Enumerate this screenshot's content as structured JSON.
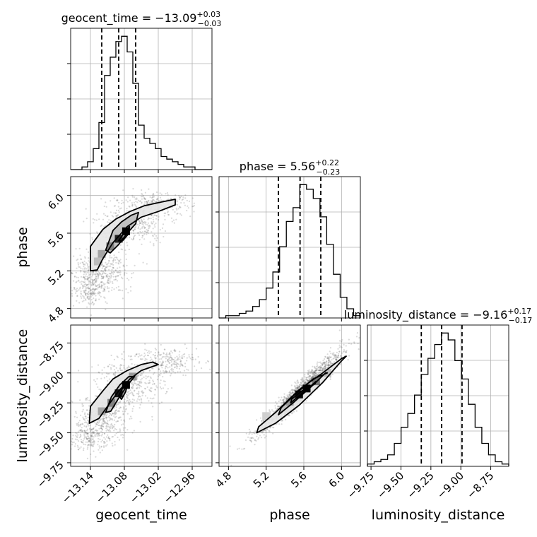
{
  "chart_data": {
    "type": "corner",
    "style": {
      "color": "#000000",
      "grid": true,
      "gridColor": "#b0b0b0",
      "scatterColor": "#555555",
      "quantileLine": "dashed"
    },
    "parameters": [
      {
        "name": "geocent_time",
        "axis_label": "geocent_time",
        "range": [
          -13.175,
          -12.925
        ],
        "ticks": [
          -13.14,
          -13.08,
          -13.02,
          -12.96
        ],
        "tick_labels": [
          "−13.14",
          "−13.08",
          "−13.02",
          "−12.96"
        ],
        "title": {
          "main": "geocent_time = −13.09",
          "plus": "+0.03",
          "minus": "−0.03"
        },
        "median": -13.09,
        "quantiles": [
          -13.12,
          -13.09,
          -13.06
        ],
        "hist_edges_range": [
          -13.175,
          -12.925
        ],
        "hist": [
          0,
          0,
          1,
          3,
          8,
          18,
          36,
          43,
          49,
          51,
          45,
          33,
          17,
          12,
          10,
          8,
          5,
          4,
          3,
          2,
          1,
          1,
          0,
          0,
          0
        ]
      },
      {
        "name": "phase",
        "axis_label": "phase",
        "range": [
          4.7,
          6.2
        ],
        "ticks": [
          4.8,
          5.2,
          5.6,
          6.0
        ],
        "tick_labels": [
          "4.8",
          "5.2",
          "5.6",
          "6.0"
        ],
        "title": {
          "main": "phase = 5.56",
          "plus": "+0.22",
          "minus": "−0.23"
        },
        "median": 5.56,
        "quantiles": [
          5.33,
          5.56,
          5.78
        ],
        "hist_edges_range": [
          4.7,
          6.2
        ],
        "hist": [
          0,
          1,
          1,
          2,
          3,
          5,
          8,
          13,
          20,
          31,
          42,
          48,
          58,
          56,
          52,
          44,
          32,
          19,
          9,
          4,
          1
        ]
      },
      {
        "name": "luminosity_distance",
        "axis_label": "luminosity_distance",
        "range": [
          -9.78,
          -8.6
        ],
        "ticks": [
          -9.75,
          -9.5,
          -9.25,
          -9.0,
          -8.75
        ],
        "tick_labels": [
          "−9.75",
          "−9.50",
          "−9.25",
          "−9.00",
          "−8.75"
        ],
        "title": {
          "main": "luminosity_distance = −9.16",
          "plus": "+0.17",
          "minus": "−0.17"
        },
        "median": -9.16,
        "quantiles": [
          -9.33,
          -9.16,
          -8.99
        ],
        "hist_edges_range": [
          -9.78,
          -8.6
        ],
        "hist": [
          1,
          2,
          3,
          5,
          10,
          17,
          23,
          31,
          40,
          47,
          53,
          58,
          55,
          46,
          38,
          27,
          17,
          10,
          5,
          2,
          1
        ]
      }
    ],
    "pairs": [
      {
        "x": "geocent_time",
        "y": "phase",
        "center": [
          -13.085,
          5.5
        ],
        "cloud": [
          {
            "x": -13.12,
            "y": 5.2,
            "sx": 0.025,
            "sy": 0.12,
            "n": 420
          },
          {
            "x": -13.07,
            "y": 5.7,
            "sx": 0.03,
            "sy": 0.12,
            "n": 380
          },
          {
            "x": -13.02,
            "y": 5.9,
            "sx": 0.03,
            "sy": 0.06,
            "n": 250
          },
          {
            "x": -13.14,
            "y": 5.0,
            "sx": 0.015,
            "sy": 0.08,
            "n": 160
          }
        ],
        "contours": [
          [
            [
              -13.14,
              5.2
            ],
            [
              -13.14,
              5.46
            ],
            [
              -13.118,
              5.64
            ],
            [
              -13.095,
              5.75
            ],
            [
              -13.07,
              5.83
            ],
            [
              -13.045,
              5.89
            ],
            [
              -13.015,
              5.93
            ],
            [
              -12.99,
              5.96
            ],
            [
              -12.99,
              5.9
            ],
            [
              -13.02,
              5.83
            ],
            [
              -13.05,
              5.77
            ],
            [
              -13.075,
              5.67
            ],
            [
              -13.1,
              5.5
            ],
            [
              -13.118,
              5.33
            ],
            [
              -13.128,
              5.21
            ]
          ],
          [
            [
              -13.113,
              5.42
            ],
            [
              -13.1,
              5.63
            ],
            [
              -13.085,
              5.72
            ],
            [
              -13.068,
              5.79
            ],
            [
              -13.055,
              5.82
            ],
            [
              -13.06,
              5.7
            ],
            [
              -13.075,
              5.6
            ],
            [
              -13.09,
              5.48
            ],
            [
              -13.105,
              5.39
            ]
          ],
          [
            [
              -13.09,
              5.52
            ],
            [
              -13.08,
              5.61
            ],
            [
              -13.071,
              5.67
            ],
            [
              -13.073,
              5.59
            ],
            [
              -13.083,
              5.52
            ]
          ]
        ],
        "density_cells": [
          {
            "x": -13.077,
            "y": 5.62,
            "v": 1.0
          },
          {
            "x": -13.09,
            "y": 5.54,
            "v": 0.85
          },
          {
            "x": -13.105,
            "y": 5.46,
            "v": 0.45
          },
          {
            "x": -13.12,
            "y": 5.38,
            "v": 0.3
          },
          {
            "x": -13.127,
            "y": 5.3,
            "v": 0.2
          }
        ]
      },
      {
        "x": "geocent_time",
        "y": "luminosity_distance",
        "center": [
          -13.085,
          -9.17
        ],
        "cloud": [
          {
            "x": -13.12,
            "y": -9.4,
            "sx": 0.025,
            "sy": 0.1,
            "n": 400
          },
          {
            "x": -13.07,
            "y": -9.1,
            "sx": 0.03,
            "sy": 0.1,
            "n": 380
          },
          {
            "x": -13.01,
            "y": -8.9,
            "sx": 0.03,
            "sy": 0.06,
            "n": 260
          },
          {
            "x": -13.14,
            "y": -9.55,
            "sx": 0.015,
            "sy": 0.06,
            "n": 150
          }
        ],
        "contours": [
          [
            [
              -13.142,
              -9.42
            ],
            [
              -13.14,
              -9.28
            ],
            [
              -13.118,
              -9.15
            ],
            [
              -13.1,
              -9.05
            ],
            [
              -13.075,
              -8.98
            ],
            [
              -13.05,
              -8.93
            ],
            [
              -13.03,
              -8.91
            ],
            [
              -13.02,
              -8.93
            ],
            [
              -13.05,
              -8.98
            ],
            [
              -13.07,
              -9.05
            ],
            [
              -13.09,
              -9.15
            ],
            [
              -13.11,
              -9.28
            ],
            [
              -13.125,
              -9.38
            ]
          ],
          [
            [
              -13.113,
              -9.33
            ],
            [
              -13.103,
              -9.2
            ],
            [
              -13.088,
              -9.1
            ],
            [
              -13.072,
              -9.03
            ],
            [
              -13.062,
              -9.03
            ],
            [
              -13.074,
              -9.1
            ],
            [
              -13.09,
              -9.21
            ],
            [
              -13.104,
              -9.32
            ]
          ],
          [
            [
              -13.09,
              -9.19
            ],
            [
              -13.08,
              -9.1
            ],
            [
              -13.073,
              -9.08
            ],
            [
              -13.078,
              -9.16
            ],
            [
              -13.085,
              -9.22
            ]
          ]
        ],
        "density_cells": [
          {
            "x": -13.077,
            "y": -9.1,
            "v": 1.0
          },
          {
            "x": -13.09,
            "y": -9.17,
            "v": 0.9
          },
          {
            "x": -13.103,
            "y": -9.25,
            "v": 0.45
          },
          {
            "x": -13.12,
            "y": -9.32,
            "v": 0.3
          },
          {
            "x": -13.065,
            "y": -9.03,
            "v": 0.35
          }
        ]
      },
      {
        "x": "phase",
        "y": "luminosity_distance",
        "center": [
          5.56,
          -9.16
        ],
        "cloud": [
          {
            "x": 5.56,
            "y": -9.16,
            "sx": 0.22,
            "sy": 0.17,
            "n": 1400,
            "rho": 0.96
          }
        ],
        "contours": [
          [
            [
              5.1,
              -9.5
            ],
            [
              5.3,
              -9.42
            ],
            [
              5.55,
              -9.27
            ],
            [
              5.8,
              -9.08
            ],
            [
              6.0,
              -8.9
            ],
            [
              6.05,
              -8.86
            ],
            [
              6.0,
              -8.88
            ],
            [
              5.8,
              -9.0
            ],
            [
              5.55,
              -9.14
            ],
            [
              5.3,
              -9.33
            ],
            [
              5.12,
              -9.45
            ]
          ],
          [
            [
              5.33,
              -9.35
            ],
            [
              5.5,
              -9.24
            ],
            [
              5.7,
              -9.1
            ],
            [
              5.83,
              -9.0
            ],
            [
              5.85,
              -9.0
            ],
            [
              5.7,
              -9.05
            ],
            [
              5.52,
              -9.17
            ],
            [
              5.36,
              -9.29
            ]
          ],
          [
            [
              5.46,
              -9.25
            ],
            [
              5.6,
              -9.16
            ],
            [
              5.73,
              -9.07
            ],
            [
              5.72,
              -9.09
            ],
            [
              5.58,
              -9.15
            ],
            [
              5.47,
              -9.22
            ]
          ]
        ],
        "density_cells": [
          {
            "x": 5.63,
            "y": -9.13,
            "v": 1.0
          },
          {
            "x": 5.55,
            "y": -9.18,
            "v": 0.95
          },
          {
            "x": 5.73,
            "y": -9.07,
            "v": 0.5
          },
          {
            "x": 5.45,
            "y": -9.24,
            "v": 0.35
          },
          {
            "x": 5.85,
            "y": -9.0,
            "v": 0.2
          },
          {
            "x": 5.2,
            "y": -9.36,
            "v": 0.12
          }
        ]
      }
    ]
  }
}
